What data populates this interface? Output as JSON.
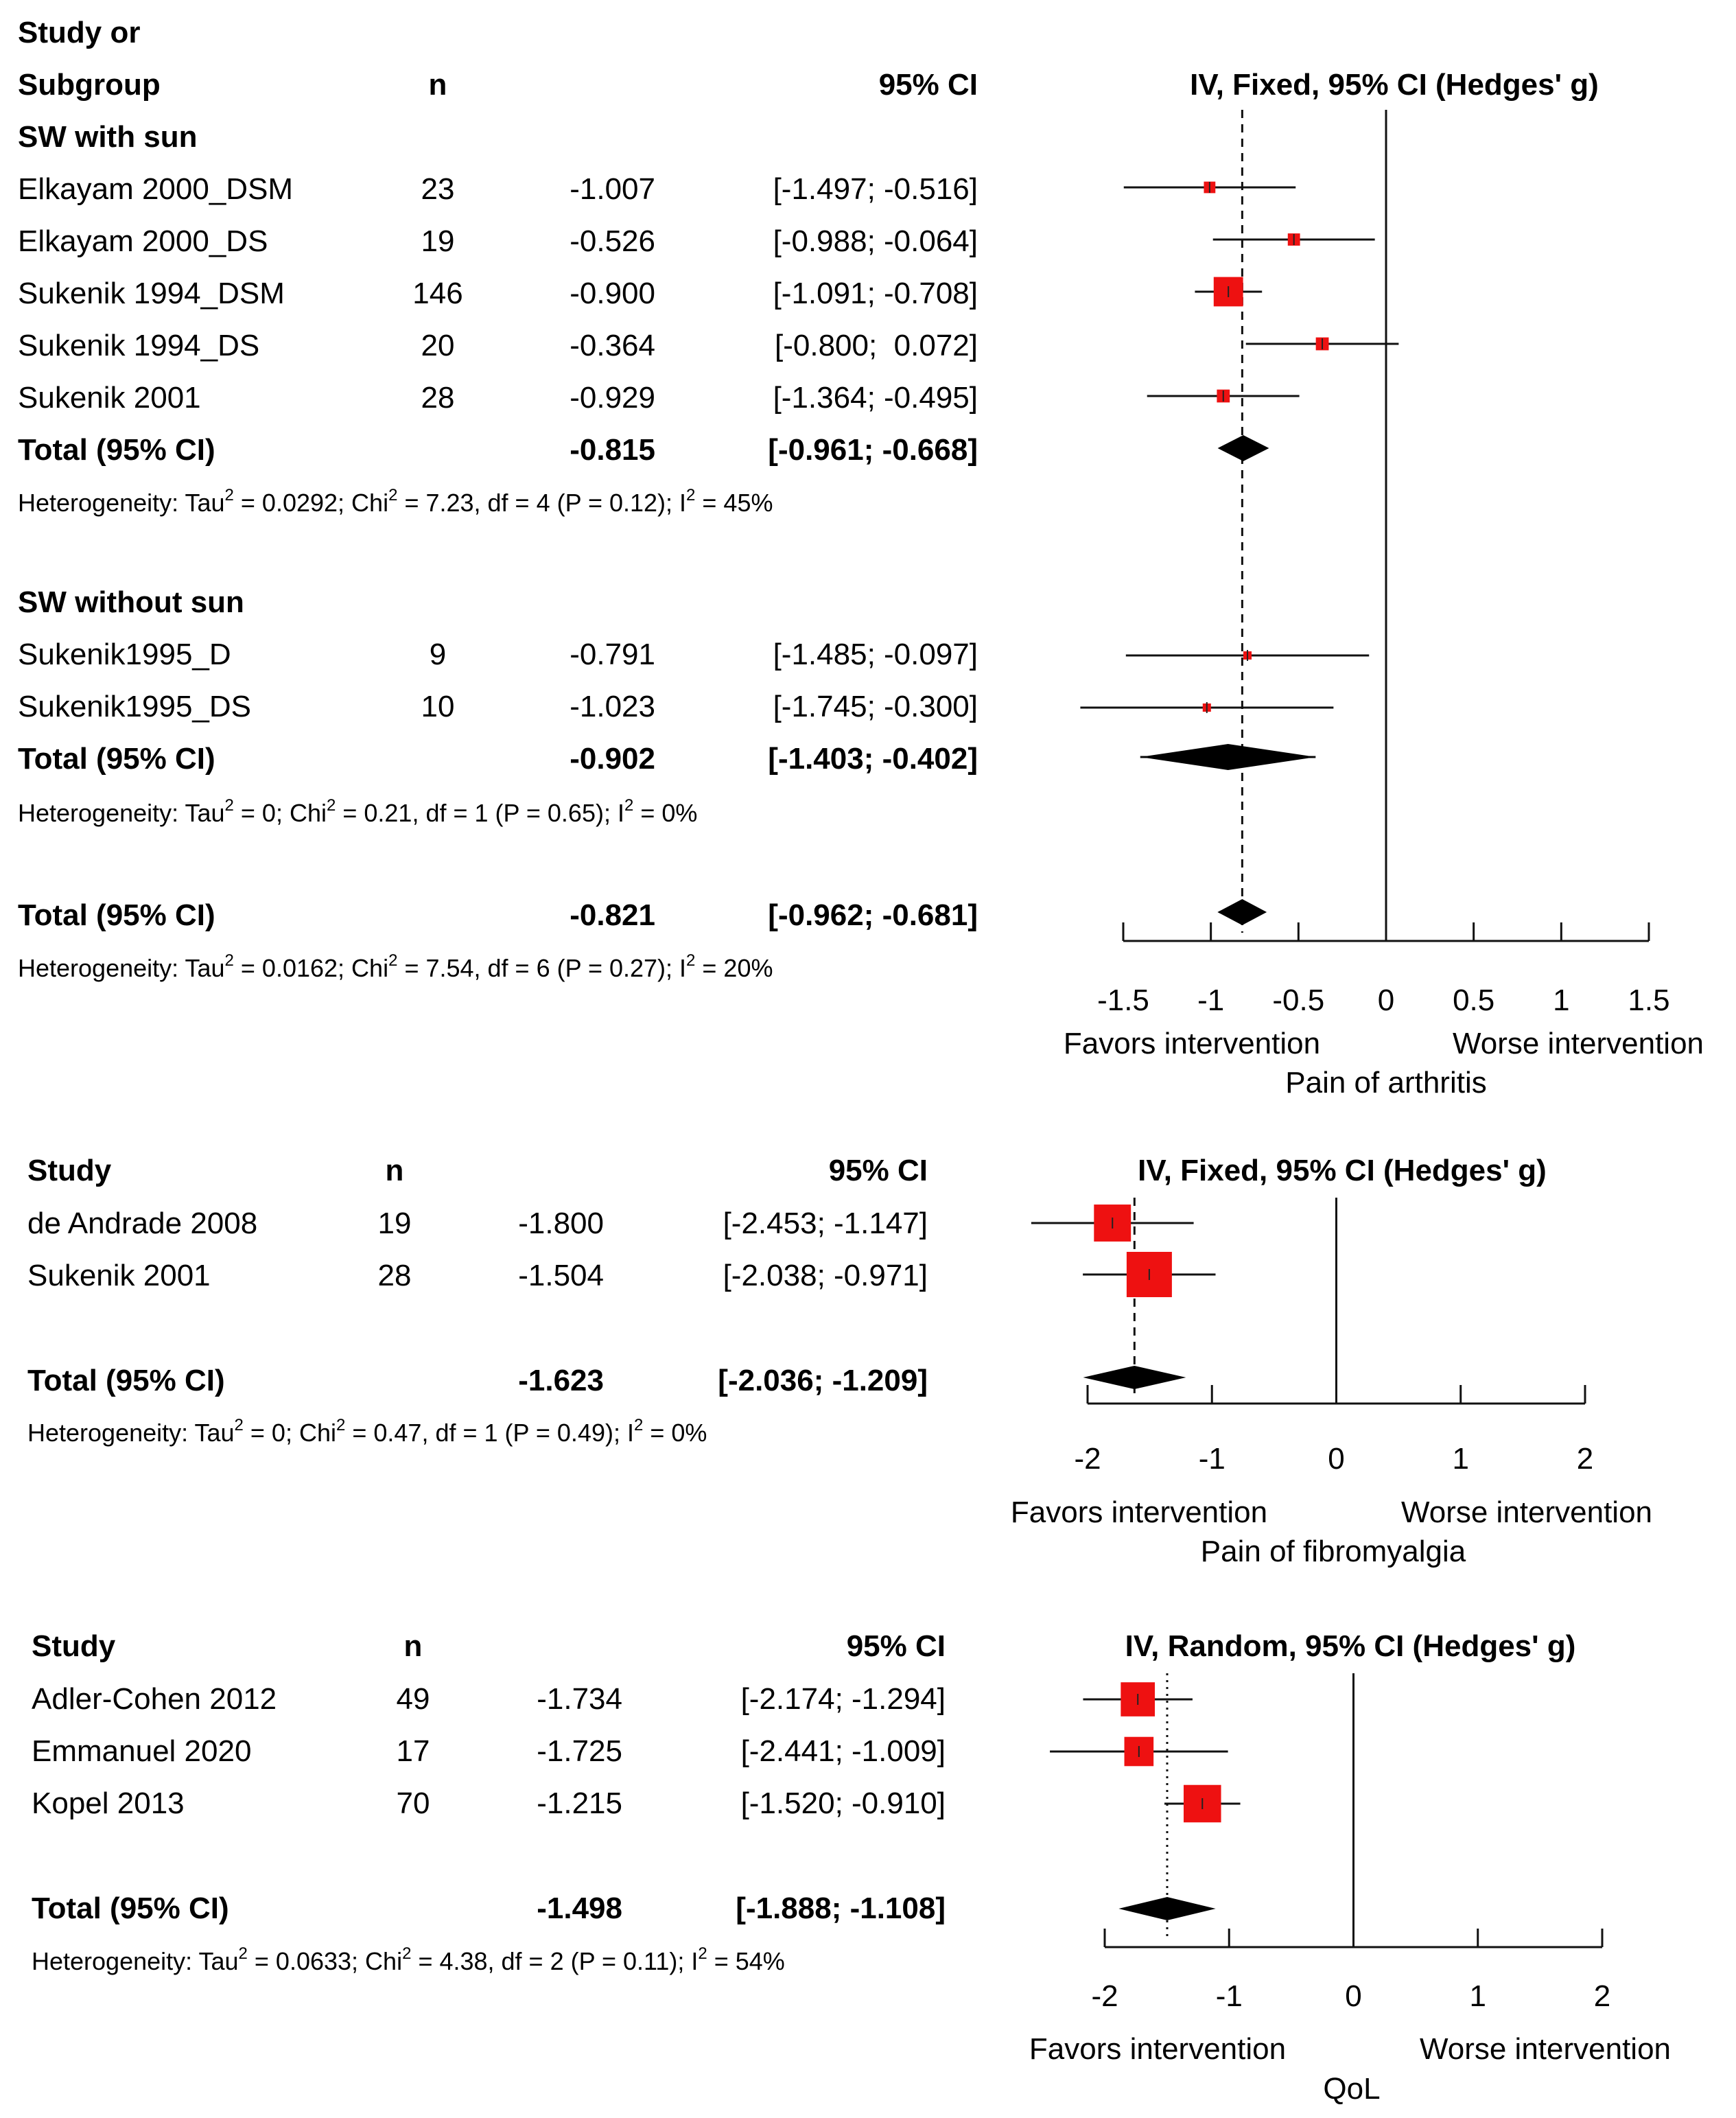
{
  "chart_data": [
    {
      "type": "forest",
      "title": "Pain of arthritis",
      "header": {
        "study_line1": "Study or",
        "study_line2": "Subgroup",
        "n": "n",
        "ci": "95% CI",
        "method": "IV, Fixed, 95% CI (Hedges' g)"
      },
      "xlim": [
        -1.5,
        1.5
      ],
      "ticks": [
        "-1.5",
        "-1",
        "-0.5",
        "0",
        "0.5",
        "1",
        "1.5"
      ],
      "tick_values": [
        -1.5,
        -1,
        -0.5,
        0,
        0.5,
        1,
        1.5
      ],
      "favors_left": "Favors intervention",
      "favors_right": "Worse intervention",
      "xlabel": "Pain of arthritis",
      "overall_line": "dashed",
      "subgroups": [
        {
          "name": "SW with sun",
          "studies": [
            {
              "study": "Elkayam 2000_DSM",
              "n": "23",
              "est": -1.007,
              "est_text": "-1.007",
              "lower": -1.497,
              "upper": -0.516,
              "ci_text": "[-1.497; -0.516]",
              "weight": 0.08
            },
            {
              "study": "Elkayam 2000_DS",
              "n": "19",
              "est": -0.526,
              "est_text": "-0.526",
              "lower": -0.988,
              "upper": -0.064,
              "ci_text": "[-0.988; -0.064]",
              "weight": 0.09
            },
            {
              "study": "Sukenik 1994_DSM",
              "n": "146",
              "est": -0.9,
              "est_text": "-0.900",
              "lower": -1.091,
              "upper": -0.708,
              "ci_text": "[-1.091; -0.708]",
              "weight": 0.52
            },
            {
              "study": "Sukenik 1994_DS",
              "n": "20",
              "est": -0.364,
              "est_text": "-0.364",
              "lower": -0.8,
              "upper": 0.072,
              "ci_text": "[-0.800;  0.072]",
              "weight": 0.1
            },
            {
              "study": "Sukenik 2001",
              "n": "28",
              "est": -0.929,
              "est_text": "-0.929",
              "lower": -1.364,
              "upper": -0.495,
              "ci_text": "[-1.364; -0.495]",
              "weight": 0.1
            }
          ],
          "total": {
            "label": "Total (95% CI)",
            "est": -0.815,
            "est_text": "-0.815",
            "lower": -0.961,
            "upper": -0.668,
            "ci_text": "[-0.961; -0.668]"
          },
          "heterogeneity": {
            "prefix": "Heterogeneity: Tau",
            "tau2": " = 0.0292; Chi",
            "chi2": " = 7.23, df = 4 (P = 0.12); I",
            "i2": " = 45%"
          }
        },
        {
          "name": "SW without sun",
          "studies": [
            {
              "study": "Sukenik1995_D",
              "n": "9",
              "est": -0.791,
              "est_text": "-0.791",
              "lower": -1.485,
              "upper": -0.097,
              "ci_text": "[-1.485; -0.097]",
              "weight": 0.03
            },
            {
              "study": "Sukenik1995_DS",
              "n": "10",
              "est": -1.023,
              "est_text": "-1.023",
              "lower": -1.745,
              "upper": -0.3,
              "ci_text": "[-1.745; -0.300]",
              "weight": 0.03
            }
          ],
          "total": {
            "label": "Total (95% CI)",
            "est": -0.902,
            "est_text": "-0.902",
            "lower": -1.403,
            "upper": -0.402,
            "ci_text": "[-1.403; -0.402]"
          },
          "heterogeneity": {
            "prefix": "Heterogeneity: Tau",
            "tau2": " = 0; Chi",
            "chi2": " = 0.21, df = 1 (P = 0.65); I",
            "i2": " = 0%"
          }
        }
      ],
      "overall": {
        "label": "Total (95% CI)",
        "est": -0.821,
        "est_text": "-0.821",
        "lower": -0.962,
        "upper": -0.681,
        "ci_text": "[-0.962; -0.681]"
      },
      "overall_heterogeneity": {
        "prefix": "Heterogeneity: Tau",
        "tau2": " = 0.0162; Chi",
        "chi2": " = 7.54, df = 6 (P = 0.27); I",
        "i2": " = 20%"
      }
    },
    {
      "type": "forest",
      "title": "Pain of fibromyalgia",
      "header": {
        "study": "Study",
        "n": "n",
        "ci": "95% CI",
        "method": "IV, Fixed, 95% CI (Hedges' g)"
      },
      "xlim": [
        -2,
        2
      ],
      "ticks": [
        "-2",
        "-1",
        "0",
        "1",
        "2"
      ],
      "tick_values": [
        -2,
        -1,
        0,
        1,
        2
      ],
      "favors_left": "Favors intervention",
      "favors_right": "Worse intervention",
      "xlabel": "Pain of fibromyalgia",
      "overall_line": "dashed",
      "studies": [
        {
          "study": "de Andrade 2008",
          "n": "19",
          "est": -1.8,
          "est_text": "-1.800",
          "lower": -2.453,
          "upper": -1.147,
          "ci_text": "[-2.453; -1.147]",
          "weight": 0.4
        },
        {
          "study": "Sukenik 2001",
          "n": "28",
          "est": -1.504,
          "est_text": "-1.504",
          "lower": -2.038,
          "upper": -0.971,
          "ci_text": "[-2.038; -0.971]",
          "weight": 0.6
        }
      ],
      "overall": {
        "label": "Total (95% CI)",
        "est": -1.623,
        "est_text": "-1.623",
        "lower": -2.036,
        "upper": -1.209,
        "ci_text": "[-2.036; -1.209]"
      },
      "heterogeneity": {
        "prefix": "Heterogeneity: Tau",
        "tau2": " = 0; Chi",
        "chi2": " = 0.47, df = 1 (P = 0.49); I",
        "i2": " = 0%"
      }
    },
    {
      "type": "forest",
      "title": "QoL",
      "header": {
        "study": "Study",
        "n": "n",
        "ci": "95% CI",
        "method": "IV, Random, 95% CI (Hedges' g)"
      },
      "xlim": [
        -2,
        2
      ],
      "ticks": [
        "-2",
        "-1",
        "0",
        "1",
        "2"
      ],
      "tick_values": [
        -2,
        -1,
        0,
        1,
        2
      ],
      "favors_left": "Favors intervention",
      "favors_right": "Worse intervention",
      "xlabel": "QoL",
      "overall_line": "dotted",
      "studies": [
        {
          "study": "Adler-Cohen 2012",
          "n": "49",
          "est": -1.734,
          "est_text": "-1.734",
          "lower": -2.174,
          "upper": -1.294,
          "ci_text": "[-2.174; -1.294]",
          "weight": 0.34
        },
        {
          "study": "Emmanuel 2020",
          "n": "17",
          "est": -1.725,
          "est_text": "-1.725",
          "lower": -2.441,
          "upper": -1.009,
          "ci_text": "[-2.441; -1.009]",
          "weight": 0.25
        },
        {
          "study": "Kopel 2013",
          "n": "70",
          "est": -1.215,
          "est_text": "-1.215",
          "lower": -1.52,
          "upper": -0.91,
          "ci_text": "[-1.520; -0.910]",
          "weight": 0.41
        }
      ],
      "overall": {
        "label": "Total (95% CI)",
        "est": -1.498,
        "est_text": "-1.498",
        "lower": -1.888,
        "upper": -1.108,
        "ci_text": "[-1.888; -1.108]"
      },
      "heterogeneity": {
        "prefix": "Heterogeneity: Tau",
        "tau2": " = 0.0633; Chi",
        "chi2": " = 4.38, df = 2 (P = 0.11); I",
        "i2": " = 54%"
      }
    }
  ],
  "colors": {
    "square": "#ee1111",
    "line": "#111111",
    "diamond": "#000000"
  }
}
